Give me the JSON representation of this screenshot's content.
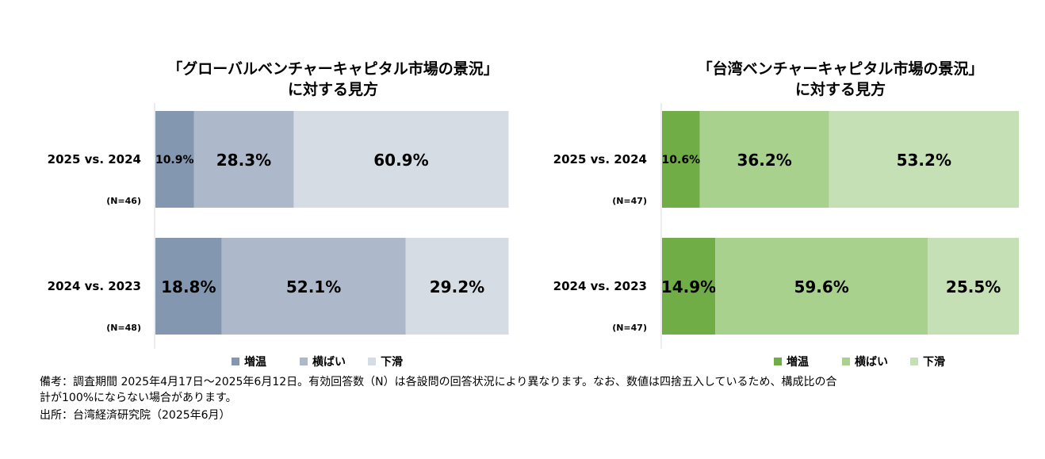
{
  "chart_data": [
    {
      "type": "bar",
      "stacked": true,
      "orientation": "horizontal",
      "title": "「グローバルベンチャーキャピタル市場の景況」\nに対する見方",
      "categories": [
        "2025 vs. 2024",
        "2024 vs. 2023"
      ],
      "sample_sizes": [
        "(N=46)",
        "(N=48)"
      ],
      "series": [
        {
          "name": "増温",
          "values": [
            10.9,
            18.8
          ],
          "labels": [
            "10.9%",
            "18.8%"
          ],
          "color": "#8497b0"
        },
        {
          "name": "横ばい",
          "values": [
            28.3,
            52.1
          ],
          "labels": [
            "28.3%",
            "52.1%"
          ],
          "color": "#adb9ca"
        },
        {
          "name": "下滑",
          "values": [
            60.9,
            29.2
          ],
          "labels": [
            "60.9%",
            "29.2%"
          ],
          "color": "#d6dce4"
        }
      ],
      "xlim": [
        0,
        100
      ],
      "legend": "bottom"
    },
    {
      "type": "bar",
      "stacked": true,
      "orientation": "horizontal",
      "title": "「台湾ベンチャーキャピタル市場の景況」\nに対する見方",
      "categories": [
        "2025 vs. 2024",
        "2024 vs. 2023"
      ],
      "sample_sizes": [
        "(N=47)",
        "(N=47)"
      ],
      "series": [
        {
          "name": "増温",
          "values": [
            10.6,
            14.9
          ],
          "labels": [
            "10.6%",
            "14.9%"
          ],
          "color": "#70ad47"
        },
        {
          "name": "横ばい",
          "values": [
            36.2,
            59.6
          ],
          "labels": [
            "36.2%",
            "59.6%"
          ],
          "color": "#a9d18e"
        },
        {
          "name": "下滑",
          "values": [
            53.2,
            25.5
          ],
          "labels": [
            "53.2%",
            "25.5%"
          ],
          "color": "#c5e0b4"
        }
      ],
      "xlim": [
        0,
        100
      ],
      "legend": "bottom"
    }
  ],
  "notes": {
    "line1": "備考：調査期間 2025年4月17日～2025年6月12日。有効回答数（N）は各設問の回答状況により異なります。なお、数値は四捨五入しているため、構成比の合",
    "line2": "計が100%にならない場合があります。",
    "line3": "出所：台湾経済研究院（2025年6月）"
  }
}
